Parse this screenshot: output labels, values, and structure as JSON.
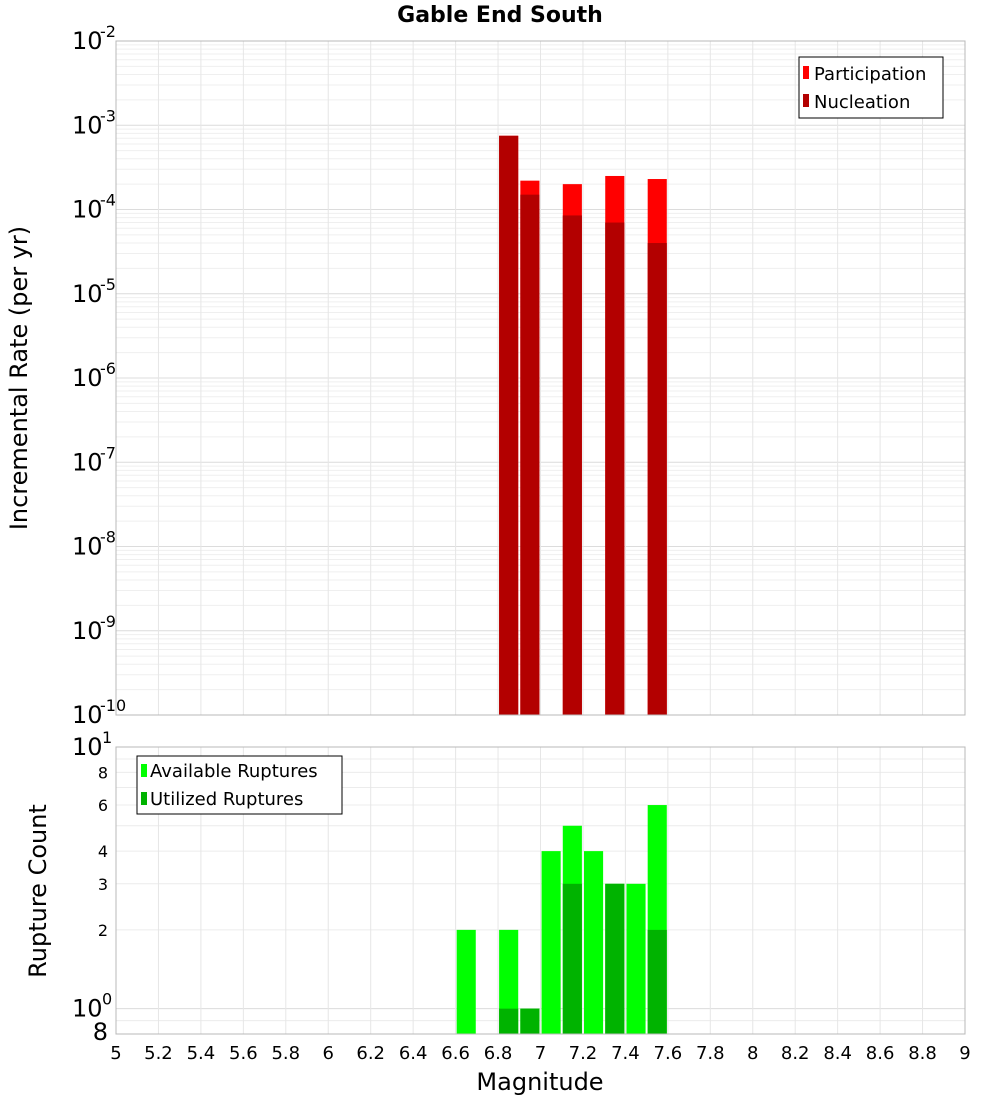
{
  "chart_data": [
    {
      "type": "bar",
      "title": "Gable End South",
      "ylabel": "Incremental Rate (per yr)",
      "xlabel": "",
      "xlim": [
        5,
        9
      ],
      "ylim": [
        1e-10,
        0.01
      ],
      "yscale": "log",
      "y_ticks": [
        {
          "base": "10",
          "exp": "-2",
          "value": 0.01
        },
        {
          "base": "10",
          "exp": "-3",
          "value": 0.001
        },
        {
          "base": "10",
          "exp": "-4",
          "value": 0.0001
        },
        {
          "base": "10",
          "exp": "-5",
          "value": 1e-05
        },
        {
          "base": "10",
          "exp": "-6",
          "value": 1e-06
        },
        {
          "base": "10",
          "exp": "-7",
          "value": 1e-07
        },
        {
          "base": "10",
          "exp": "-8",
          "value": 1e-08
        },
        {
          "base": "10",
          "exp": "-9",
          "value": 1e-09
        },
        {
          "base": "10",
          "exp": "-10",
          "value": 1e-10
        }
      ],
      "bar_width": 0.09,
      "legend": [
        {
          "label": "Participation",
          "color": "#ff0000"
        },
        {
          "label": "Nucleation",
          "color": "#b30000"
        }
      ],
      "legend_position": "top-right",
      "series": [
        {
          "name": "Participation",
          "color": "#ff0000",
          "x": [
            6.85,
            6.95,
            7.15,
            7.35,
            7.55
          ],
          "values": [
            0.00075,
            0.00022,
            0.0002,
            0.00025,
            0.00023
          ]
        },
        {
          "name": "Nucleation",
          "color": "#b30000",
          "x": [
            6.85,
            6.95,
            7.15,
            7.35,
            7.55
          ],
          "values": [
            0.00075,
            0.00015,
            8.5e-05,
            7e-05,
            4e-05
          ]
        }
      ]
    },
    {
      "type": "bar",
      "title": "",
      "ylabel": "Rupture Count",
      "xlabel": "Magnitude",
      "xlim": [
        5,
        9
      ],
      "ylim": [
        0.8,
        10
      ],
      "yscale": "log",
      "y_major_ticks": [
        {
          "base": "10",
          "exp": "1",
          "value": 10
        },
        {
          "base": "10",
          "exp": "0",
          "value": 1
        }
      ],
      "y_minor_ticks": [
        {
          "label": "8",
          "value": 8
        },
        {
          "label": "6",
          "value": 6
        },
        {
          "label": "4",
          "value": 4
        },
        {
          "label": "3",
          "value": 3
        },
        {
          "label": "2",
          "value": 2
        },
        {
          "label": "8",
          "value": 0.8
        }
      ],
      "x_ticks": [
        "5",
        "5.2",
        "5.4",
        "5.6",
        "5.8",
        "6",
        "6.2",
        "6.4",
        "6.6",
        "6.8",
        "7",
        "7.2",
        "7.4",
        "7.6",
        "7.8",
        "8",
        "8.2",
        "8.4",
        "8.6",
        "8.8",
        "9"
      ],
      "bar_width": 0.09,
      "legend": [
        {
          "label": "Available Ruptures",
          "color": "#00ff00"
        },
        {
          "label": "Utilized Ruptures",
          "color": "#00b300"
        }
      ],
      "legend_position": "top-left",
      "series": [
        {
          "name": "Available Ruptures",
          "color": "#00ff00",
          "x": [
            6.65,
            6.85,
            6.95,
            7.05,
            7.15,
            7.25,
            7.35,
            7.45,
            7.55
          ],
          "values": [
            2,
            2,
            1,
            4,
            5,
            4,
            3,
            3,
            6
          ]
        },
        {
          "name": "Utilized Ruptures",
          "color": "#00b300",
          "x": [
            6.85,
            6.95,
            7.15,
            7.35,
            7.55
          ],
          "values": [
            1,
            1,
            3,
            3,
            2
          ]
        }
      ]
    }
  ]
}
